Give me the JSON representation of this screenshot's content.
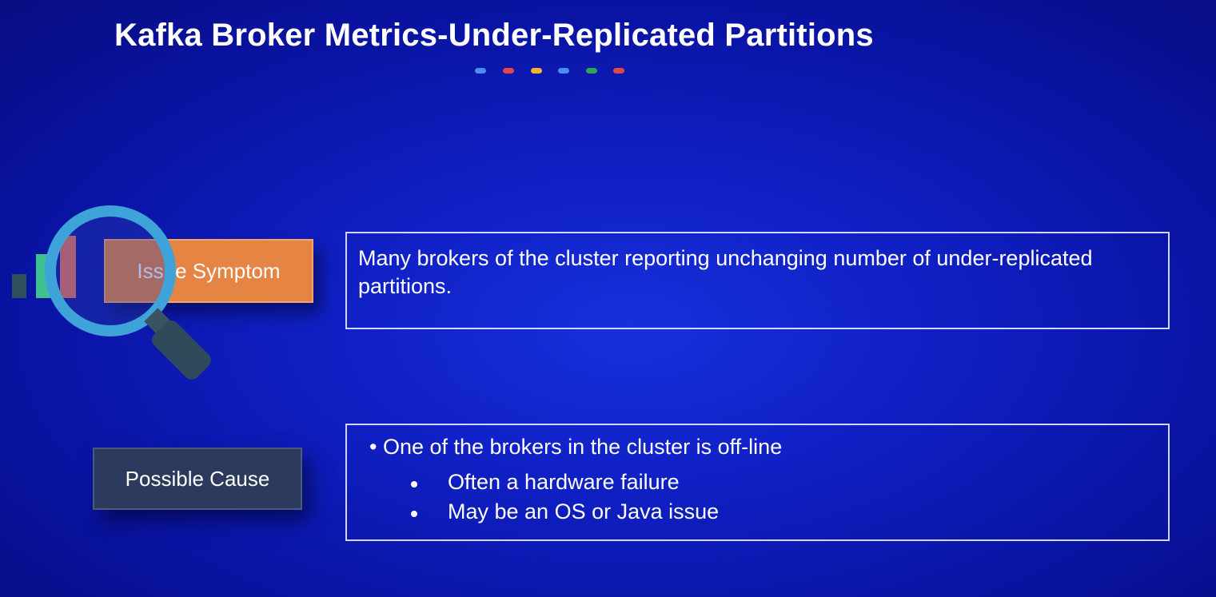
{
  "slide": {
    "title": "Kafka Broker Metrics-Under-Replicated Partitions",
    "accent_dots": [
      "#4a8ef0",
      "#e04848",
      "#f2b531",
      "#4a8ef0",
      "#2fa552",
      "#e04848"
    ]
  },
  "issue": {
    "label": "Issue Symptom",
    "text": "Many brokers of the cluster reporting unchanging number of under-replicated partitions."
  },
  "cause": {
    "label": "Possible Cause",
    "main_bullet": "• One of the brokers in the cluster is off-line",
    "sub_bullets": [
      "Often a hardware failure",
      "May be an OS or Java issue"
    ]
  },
  "colors": {
    "background": "#0f1fc2",
    "symptom_label": "#e68543",
    "cause_label": "#2c3a5e",
    "magnifier_ring": "#3ea3d9",
    "magnifier_handle": "#2f4a5a",
    "deco_green": "#3ec08f",
    "deco_coral": "#e8735f",
    "deco_slate": "#2f4f5c"
  },
  "icons": {
    "magnifier": "magnifying-glass-icon"
  }
}
